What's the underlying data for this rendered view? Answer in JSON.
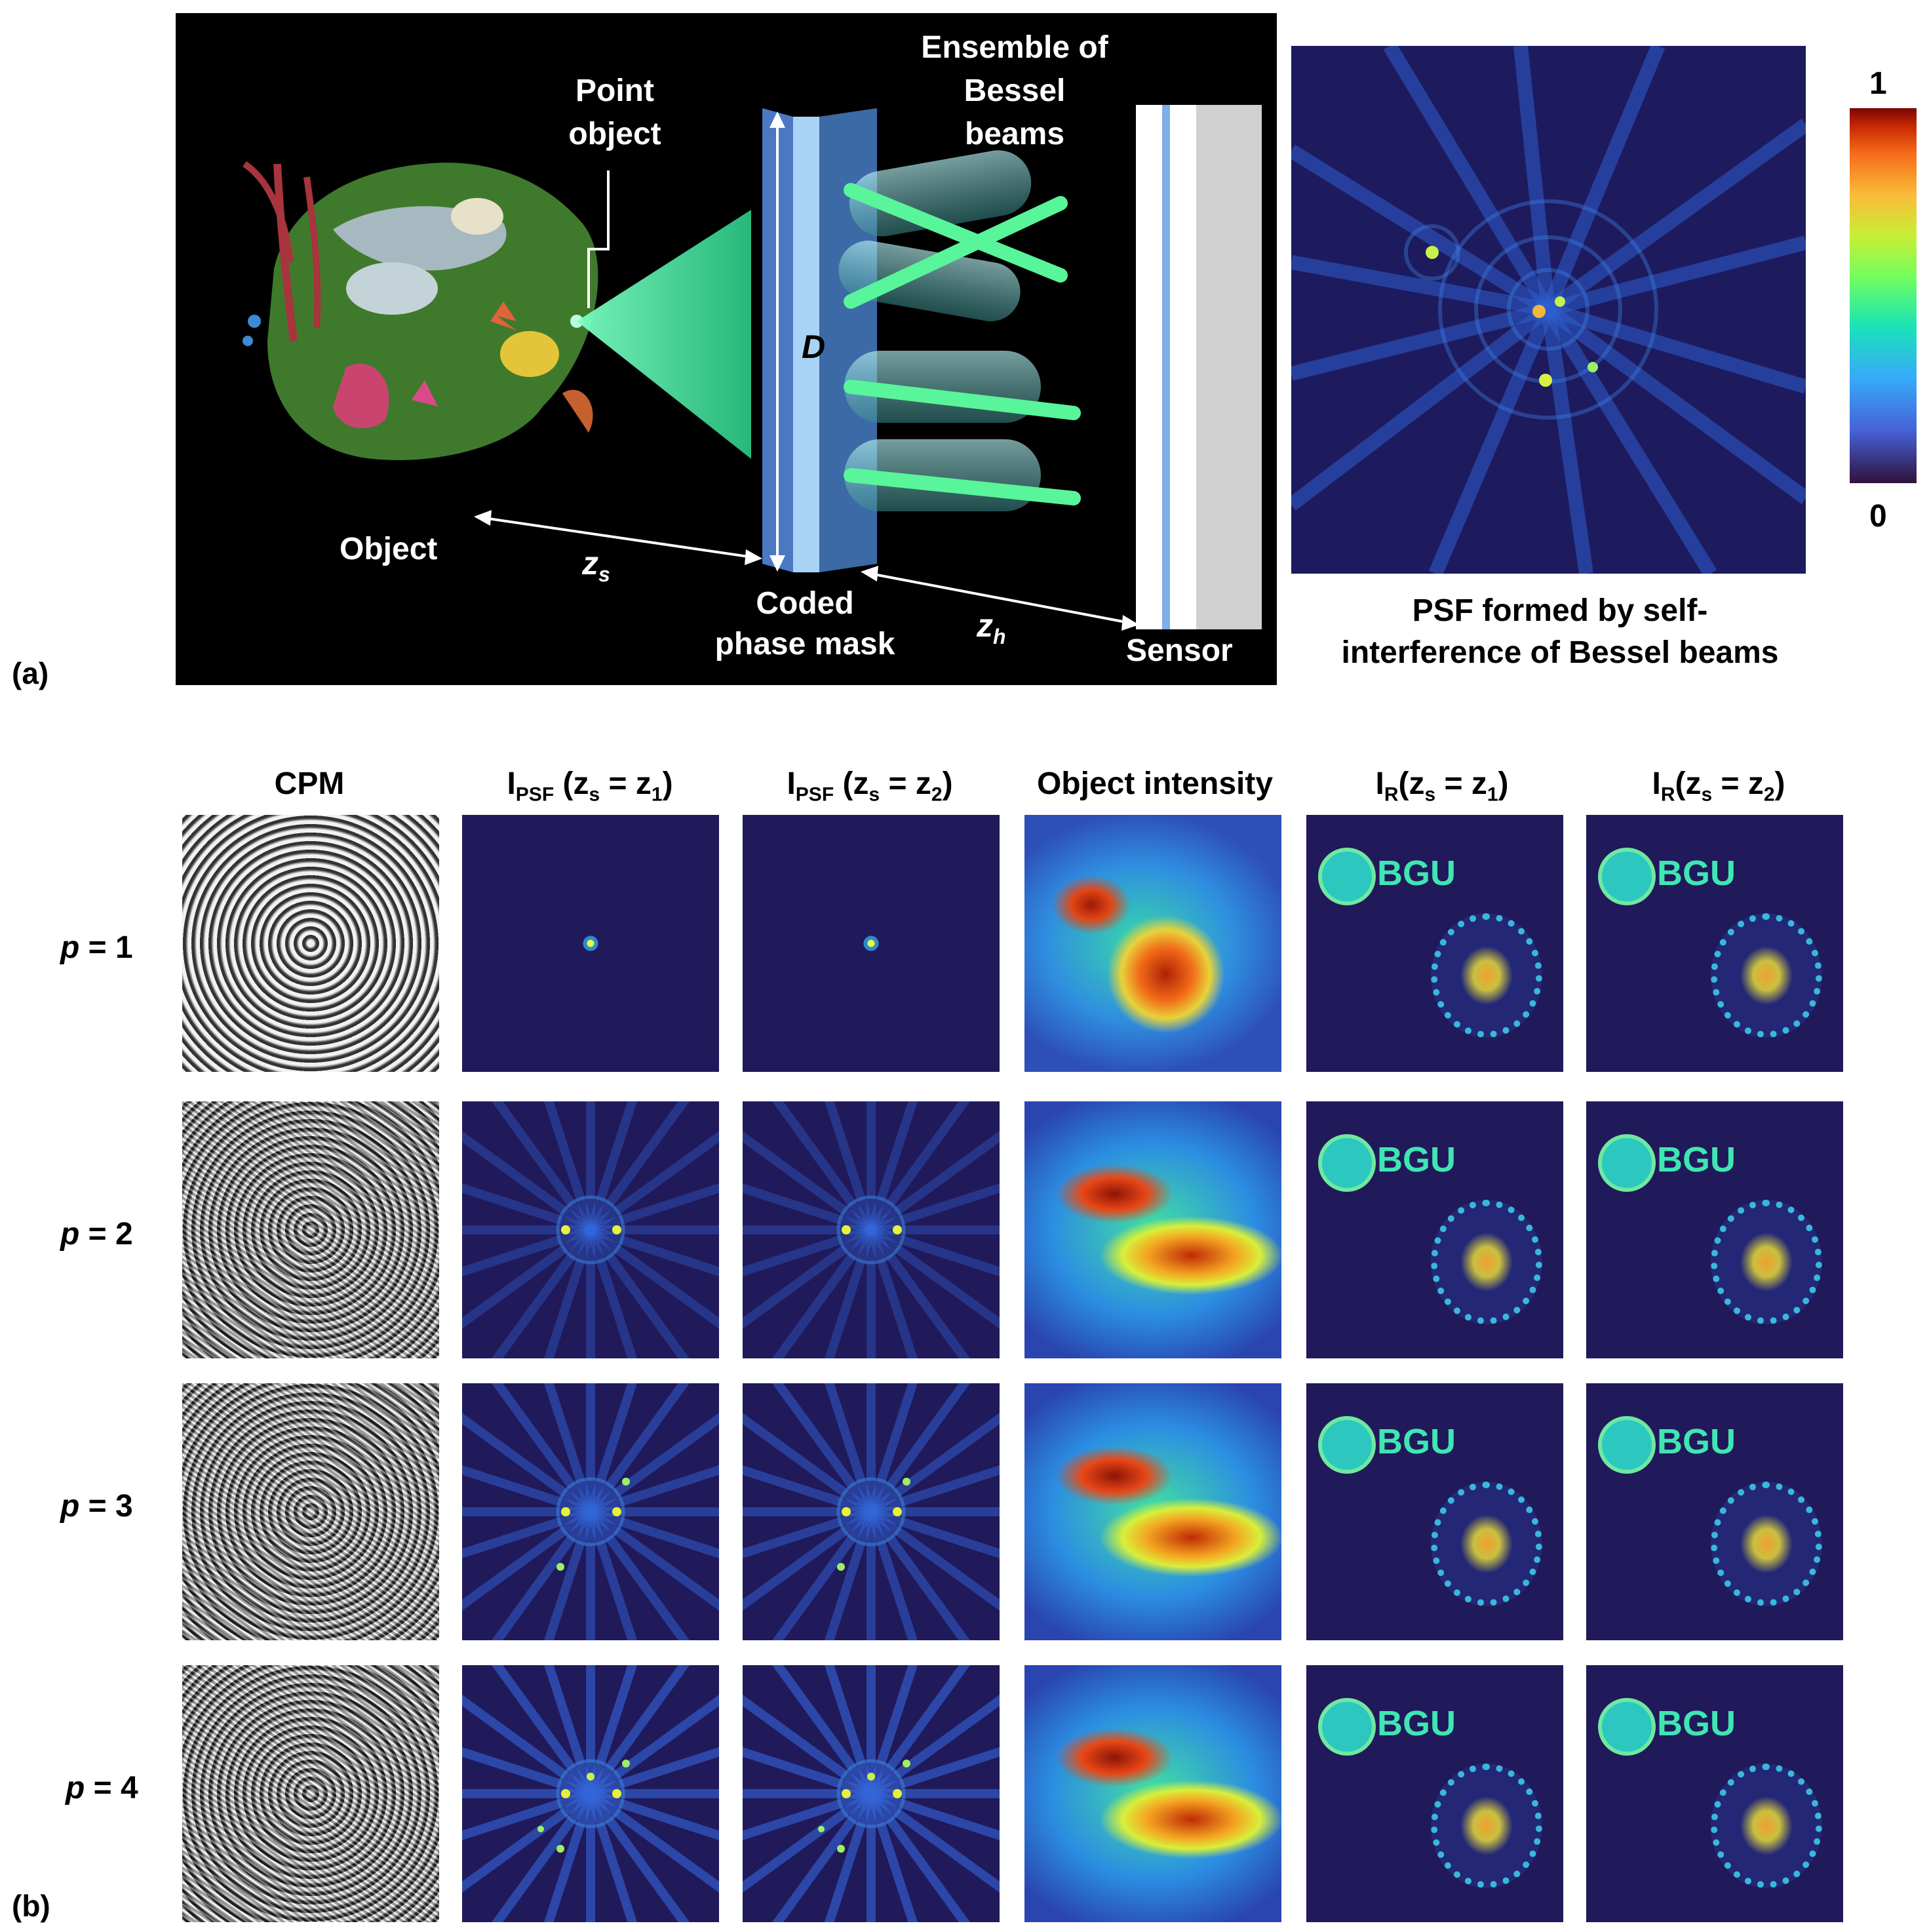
{
  "panel_a": {
    "letter": "(a)",
    "schematic": {
      "labels": {
        "point_object_l1": "Point",
        "point_object_l2": "object",
        "ensemble_l1": "Ensemble of",
        "ensemble_l2": "Bessel",
        "ensemble_l3": "beams",
        "D": "D",
        "object": "Object",
        "zs": "z",
        "zs_sub": "s",
        "coded_l1": "Coded",
        "coded_l2": "phase mask",
        "zh": "z",
        "zh_sub": "h",
        "sensor": "Sensor"
      }
    },
    "psf_caption_l1": "PSF formed by self-",
    "psf_caption_l2": "interference of Bessel beams",
    "colorbar": {
      "max": "1",
      "min": "0",
      "colormap": "turbo"
    }
  },
  "panel_b": {
    "letter": "(b)",
    "columns": [
      {
        "main": "CPM",
        "sub": "",
        "rest": ""
      },
      {
        "main": "I",
        "sub": "PSF",
        "rest": " (z",
        "sub2": "s",
        "rest2": " = z",
        "sub3": "1",
        "rest3": ")"
      },
      {
        "main": "I",
        "sub": "PSF",
        "rest": " (z",
        "sub2": "s",
        "rest2": " = z",
        "sub3": "2",
        "rest3": ")"
      },
      {
        "main": "Object intensity",
        "sub": "",
        "rest": ""
      },
      {
        "main": "I",
        "sub": "R",
        "rest": "(z",
        "sub2": "s",
        "rest2": " = z",
        "sub3": "1",
        "rest3": ")"
      },
      {
        "main": "I",
        "sub": "R",
        "rest": "(z",
        "sub2": "s",
        "rest2": " = z",
        "sub3": "2",
        "rest3": ")"
      }
    ],
    "rows": [
      {
        "var": "p",
        "eq": " = 1"
      },
      {
        "var": "p",
        "eq": " = 2"
      },
      {
        "var": "p",
        "eq": " = 3"
      },
      {
        "var": "p",
        "eq": " = 4"
      }
    ],
    "logo_text": "BGU"
  }
}
